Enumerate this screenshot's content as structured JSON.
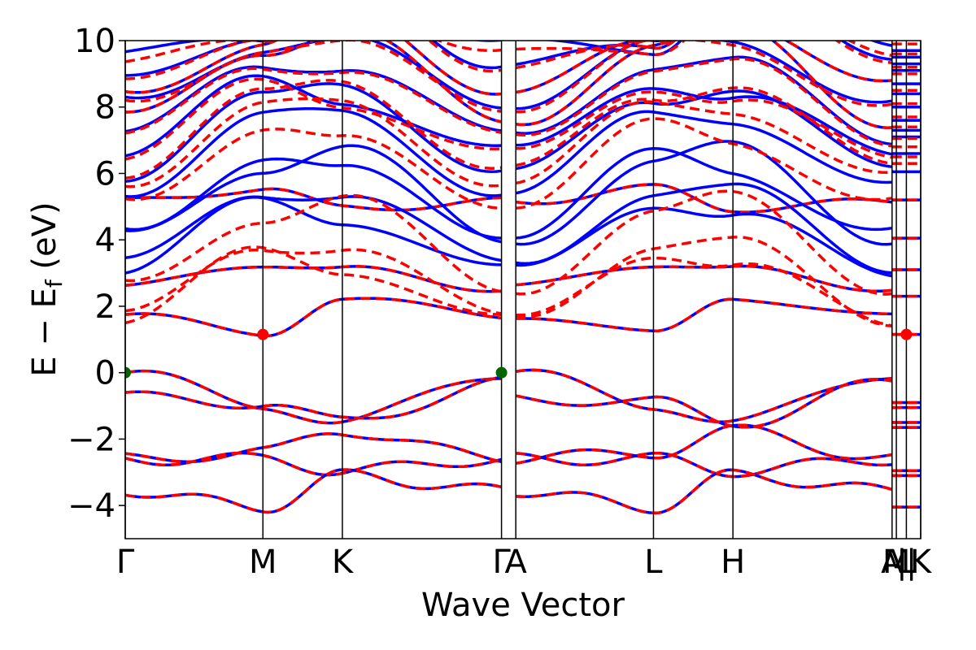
{
  "chart_data": {
    "type": "line",
    "title": "",
    "xlabel": "Wave Vector",
    "ylabel_main": "E − E",
    "ylabel_sub": "f",
    "ylabel_unit": " (eV)",
    "ylim": [
      -5,
      10
    ],
    "yticks": [
      -4,
      -2,
      0,
      2,
      4,
      6,
      8,
      10
    ],
    "ytick_labels": [
      "−4",
      "−2",
      "0",
      "2",
      "4",
      "6",
      "8",
      "10"
    ],
    "grid": false,
    "kpoints": [
      {
        "label": "Γ",
        "x": 0.0
      },
      {
        "label": "M",
        "x": 0.577
      },
      {
        "label": "K",
        "x": 0.91
      },
      {
        "label": "Γ",
        "x": 1.577
      },
      {
        "label": "A",
        "x": 1.637
      },
      {
        "label": "L",
        "x": 2.214
      },
      {
        "label": "H",
        "x": 2.547
      },
      {
        "label": "A",
        "x": 3.214
      },
      {
        "label": "M",
        "x": 3.232
      },
      {
        "label": "L",
        "x": 3.274
      },
      {
        "label": "K",
        "x": 3.334
      }
    ],
    "k_separators": [
      {
        "label": "|",
        "x": 3.255
      },
      {
        "label": "|",
        "x": 3.295
      }
    ],
    "xlim": [
      0.0,
      3.334
    ],
    "series": [
      {
        "style": "solid",
        "color": "#0000ff"
      },
      {
        "style": "dashed",
        "color": "#ff0000"
      }
    ],
    "cbm_markers": [
      {
        "x": 0.577,
        "y": 1.15
      },
      {
        "x": 3.274,
        "y": 1.15
      }
    ],
    "vbm_markers": [
      {
        "x": 0.0,
        "y": 0.0
      },
      {
        "x": 1.577,
        "y": 0.0
      }
    ],
    "marker_colors": {
      "cbm": "#ff0000",
      "vbm": "#006400"
    },
    "flat_segments": {
      "shared": [
        -4.05,
        -3.1,
        -2.95,
        -1.65,
        -1.5,
        -1.05,
        -0.9,
        1.15,
        2.3,
        3.1,
        4.05,
        5.2
      ],
      "blue_only": [
        9.7,
        9.5,
        9.3,
        9.1,
        8.7,
        8.4,
        8.0,
        7.6,
        7.3,
        7.1,
        6.6,
        6.05
      ],
      "red_only": [
        9.9,
        9.6,
        9.2,
        9.0,
        8.5,
        8.1,
        7.7,
        7.4,
        7.05,
        6.8,
        6.5,
        6.3
      ]
    },
    "bands_valence": [
      {
        "x": [
          0,
          0.577,
          0.91,
          1.577
        ],
        "y": [
          0.0,
          -0.95,
          -1.5,
          0.0
        ]
      },
      {
        "x": [
          0,
          0.577,
          0.91,
          1.577
        ],
        "y": [
          -0.75,
          -0.9,
          -1.5,
          -0.3
        ]
      },
      {
        "x": [
          0,
          0.577,
          0.91,
          1.577
        ],
        "y": [
          -2.6,
          -2.4,
          -1.75,
          -2.6
        ]
      },
      {
        "x": [
          0,
          0.577,
          0.91,
          1.577
        ],
        "y": [
          -2.6,
          -2.6,
          -2.95,
          -2.6
        ]
      },
      {
        "x": [
          0,
          0.577,
          0.91,
          1.577
        ],
        "y": [
          -3.55,
          -4.05,
          -3.1,
          -3.55
        ]
      }
    ],
    "bands_conduction_shared": [
      {
        "x": [
          0,
          0.577,
          0.91,
          1.577
        ],
        "y": [
          1.75,
          1.15,
          2.3,
          1.65
        ]
      },
      {
        "x": [
          0,
          0.577,
          0.91,
          1.577
        ],
        "y": [
          2.55,
          3.3,
          3.1,
          2.55
        ]
      },
      {
        "x": [
          0,
          0.577,
          0.91,
          1.577
        ],
        "y": [
          5.15,
          5.55,
          4.95,
          5.15
        ]
      }
    ]
  }
}
